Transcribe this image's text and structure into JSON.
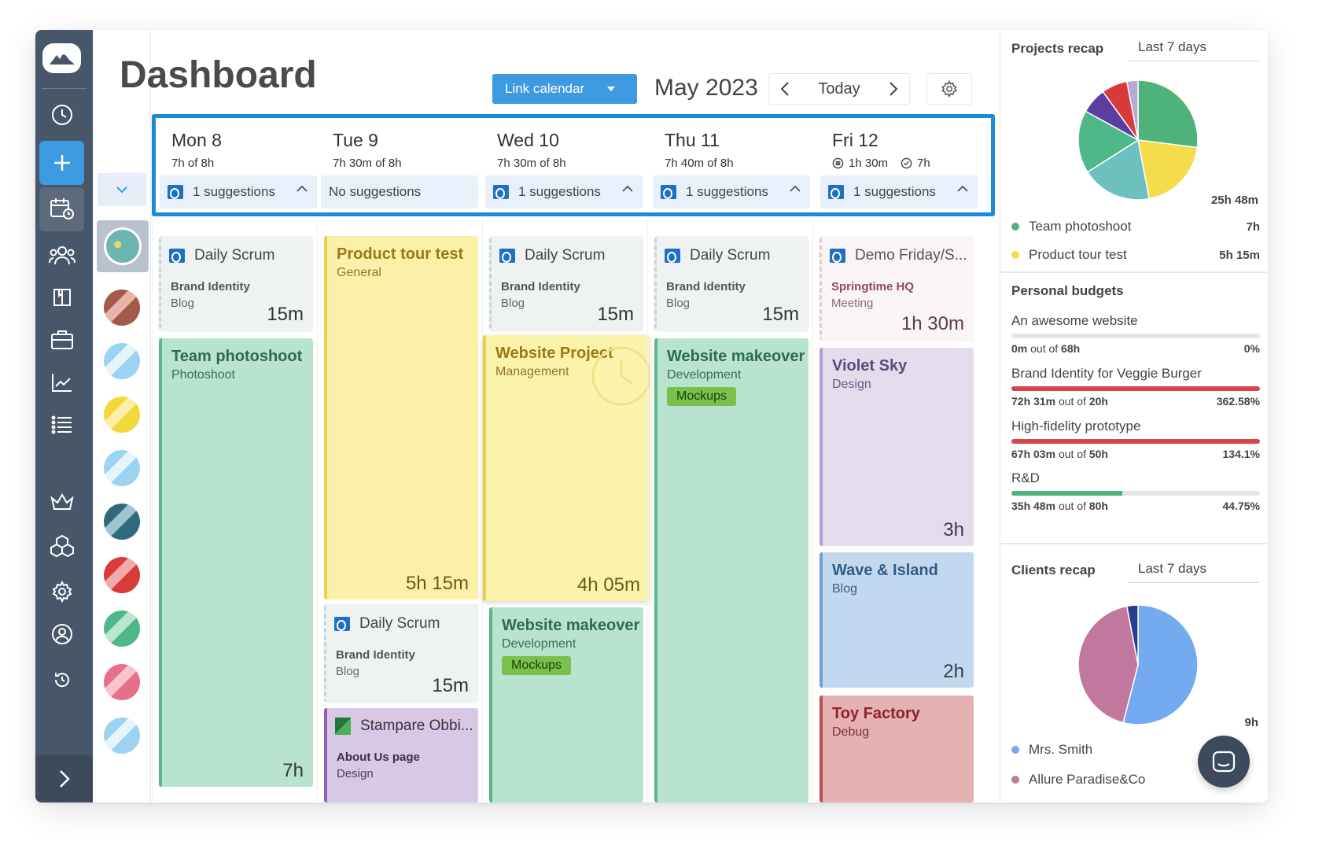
{
  "header": {
    "title": "Dashboard",
    "link_calendar": "Link calendar",
    "month": "May 2023",
    "today": "Today"
  },
  "days": [
    {
      "name": "Mon",
      "num": "8",
      "hours": "7h  of 8h",
      "suggestions": "1 suggestions"
    },
    {
      "name": "Tue",
      "num": "9",
      "hours": "7h 30m  of 8h",
      "suggestions": "No suggestions"
    },
    {
      "name": "Wed",
      "num": "10",
      "hours": "7h 30m  of 8h",
      "suggestions": "1 suggestions"
    },
    {
      "name": "Thu",
      "num": "11",
      "hours": "7h 40m  of 8h",
      "suggestions": "1 suggestions"
    },
    {
      "name": "Fri",
      "num": "12",
      "hours_a": "1h 30m",
      "hours_b": "7h",
      "suggestions": "1 suggestions"
    }
  ],
  "events": {
    "mon_scrum": {
      "title": "Daily Scrum",
      "l1": "Brand Identity",
      "l2": "Blog",
      "dur": "15m"
    },
    "mon_photo": {
      "title": "Team photoshoot",
      "sub": "Photoshoot",
      "dur": "7h"
    },
    "tue_tour": {
      "title": "Product tour test",
      "sub": "General",
      "dur": "5h 15m"
    },
    "tue_scrum": {
      "title": "Daily Scrum",
      "l1": "Brand Identity",
      "l2": "Blog",
      "dur": "15m"
    },
    "tue_stamp": {
      "title": "Stampare Obbi...",
      "l1": "About Us page",
      "l2": "Design"
    },
    "wed_scrum": {
      "title": "Daily Scrum",
      "l1": "Brand Identity",
      "l2": "Blog",
      "dur": "15m"
    },
    "wed_web": {
      "title": "Website Project",
      "sub": "Management",
      "dur": "4h 05m"
    },
    "wed_makeover": {
      "title": "Website makeover",
      "sub": "Development",
      "tag": "Mockups"
    },
    "thu_scrum": {
      "title": "Daily Scrum",
      "l1": "Brand Identity",
      "l2": "Blog",
      "dur": "15m"
    },
    "thu_makeover": {
      "title": "Website makeover",
      "sub": "Development",
      "tag": "Mockups"
    },
    "fri_demo": {
      "title": "Demo Friday/S...",
      "l1": "Springtime HQ",
      "l2": "Meeting",
      "dur": "1h 30m"
    },
    "fri_violet": {
      "title": "Violet Sky",
      "sub": "Design",
      "dur": "3h"
    },
    "fri_wave": {
      "title": "Wave & Island",
      "sub": "Blog",
      "dur": "2h"
    },
    "fri_toy": {
      "title": "Toy Factory",
      "sub": "Debug"
    }
  },
  "projects_recap": {
    "title": "Projects recap",
    "range": "Last 7 days",
    "total": "25h 48m",
    "items": [
      {
        "name": "Team photoshoot",
        "value": "7h",
        "color": "#4db37a"
      },
      {
        "name": "Product tour test",
        "value": "5h 15m",
        "color": "#f4dc4a"
      }
    ],
    "slices": [
      {
        "label": "Team photoshoot",
        "fraction": 0.27,
        "color": "#4db37a"
      },
      {
        "label": "Product tour test",
        "fraction": 0.2,
        "color": "#f4dc4a"
      },
      {
        "label": "slice-3",
        "fraction": 0.19,
        "color": "#6cc0c0"
      },
      {
        "label": "slice-4",
        "fraction": 0.17,
        "color": "#4fb888"
      },
      {
        "label": "slice-5",
        "fraction": 0.07,
        "color": "#5b3ea3"
      },
      {
        "label": "slice-6",
        "fraction": 0.07,
        "color": "#d83a3a"
      },
      {
        "label": "slice-7",
        "fraction": 0.03,
        "color": "#b8a9d6"
      }
    ]
  },
  "personal_budgets": {
    "title": "Personal budgets",
    "items": [
      {
        "name": "An awesome website",
        "spent": "0m",
        "of": "out of",
        "total": "68h",
        "pct": "0%",
        "fraction": 0.0,
        "color": "#4db37a"
      },
      {
        "name": "Brand Identity for Veggie Burger",
        "spent": "72h 31m",
        "of": "out of",
        "total": "20h",
        "pct": "362.58%",
        "fraction": 1.0,
        "color": "#d9434c"
      },
      {
        "name": "High-fidelity prototype",
        "spent": "67h 03m",
        "of": "out of",
        "total": "50h",
        "pct": "134.1%",
        "fraction": 1.0,
        "color": "#d9434c"
      },
      {
        "name": "R&D",
        "spent": "35h 48m",
        "of": "out of",
        "total": "80h",
        "pct": "44.75%",
        "fraction": 0.4475,
        "color": "#4db37a"
      }
    ]
  },
  "clients_recap": {
    "title": "Clients recap",
    "range": "Last 7 days",
    "total": "9h",
    "items": [
      {
        "name": "Mrs. Smith",
        "color": "#74aaf0"
      },
      {
        "name": "Allure Paradise&Co",
        "color": "#c0789e"
      }
    ],
    "slices": [
      {
        "label": "Mrs. Smith",
        "fraction": 0.54,
        "color": "#74aaf0"
      },
      {
        "label": "Allure Paradise&Co",
        "fraction": 0.43,
        "color": "#c0789e"
      },
      {
        "label": "slice-3",
        "fraction": 0.03,
        "color": "#2a3e8f"
      }
    ]
  },
  "colors": {
    "accent": "#3e9ae0",
    "nav": "#475669",
    "highlight": "#1b8bd6"
  }
}
